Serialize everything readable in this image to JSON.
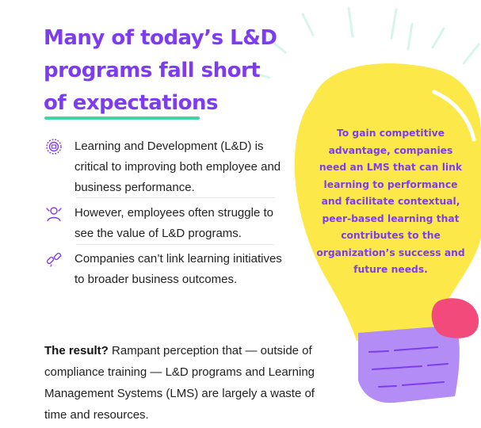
{
  "heading": {
    "line1": "Many of today’s L&D",
    "line2": "programs fall short",
    "line3": "of expectations"
  },
  "bullets": [
    {
      "icon": "target-gear-icon",
      "text": "Learning and Development (L&D) is critical to improving both employee and business performance."
    },
    {
      "icon": "confused-person-icon",
      "text": "However, employees often struggle to see the value of L&D programs."
    },
    {
      "icon": "broken-link-icon",
      "text": "Companies can’t link learning initiatives to broader business outcomes."
    }
  ],
  "result": {
    "lead": "The result?",
    "body": " Rampant perception that — outside of compliance training — L&D programs and Learning Management Systems (LMS) are largely a waste of time and resources."
  },
  "bulb": {
    "text": "To gain competitive advantage, companies need an LMS that can link learning to performance and facilitate contextual, peer-based learning that contributes to the organization’s success and future needs."
  },
  "colors": {
    "heading": "#7d3cf0",
    "underline": "#3fd6a3",
    "bulb": "#fde84a",
    "bulb_base": "#b38cf5",
    "accent_blob": "#f24a7a",
    "rays": "#d7f5ec"
  }
}
